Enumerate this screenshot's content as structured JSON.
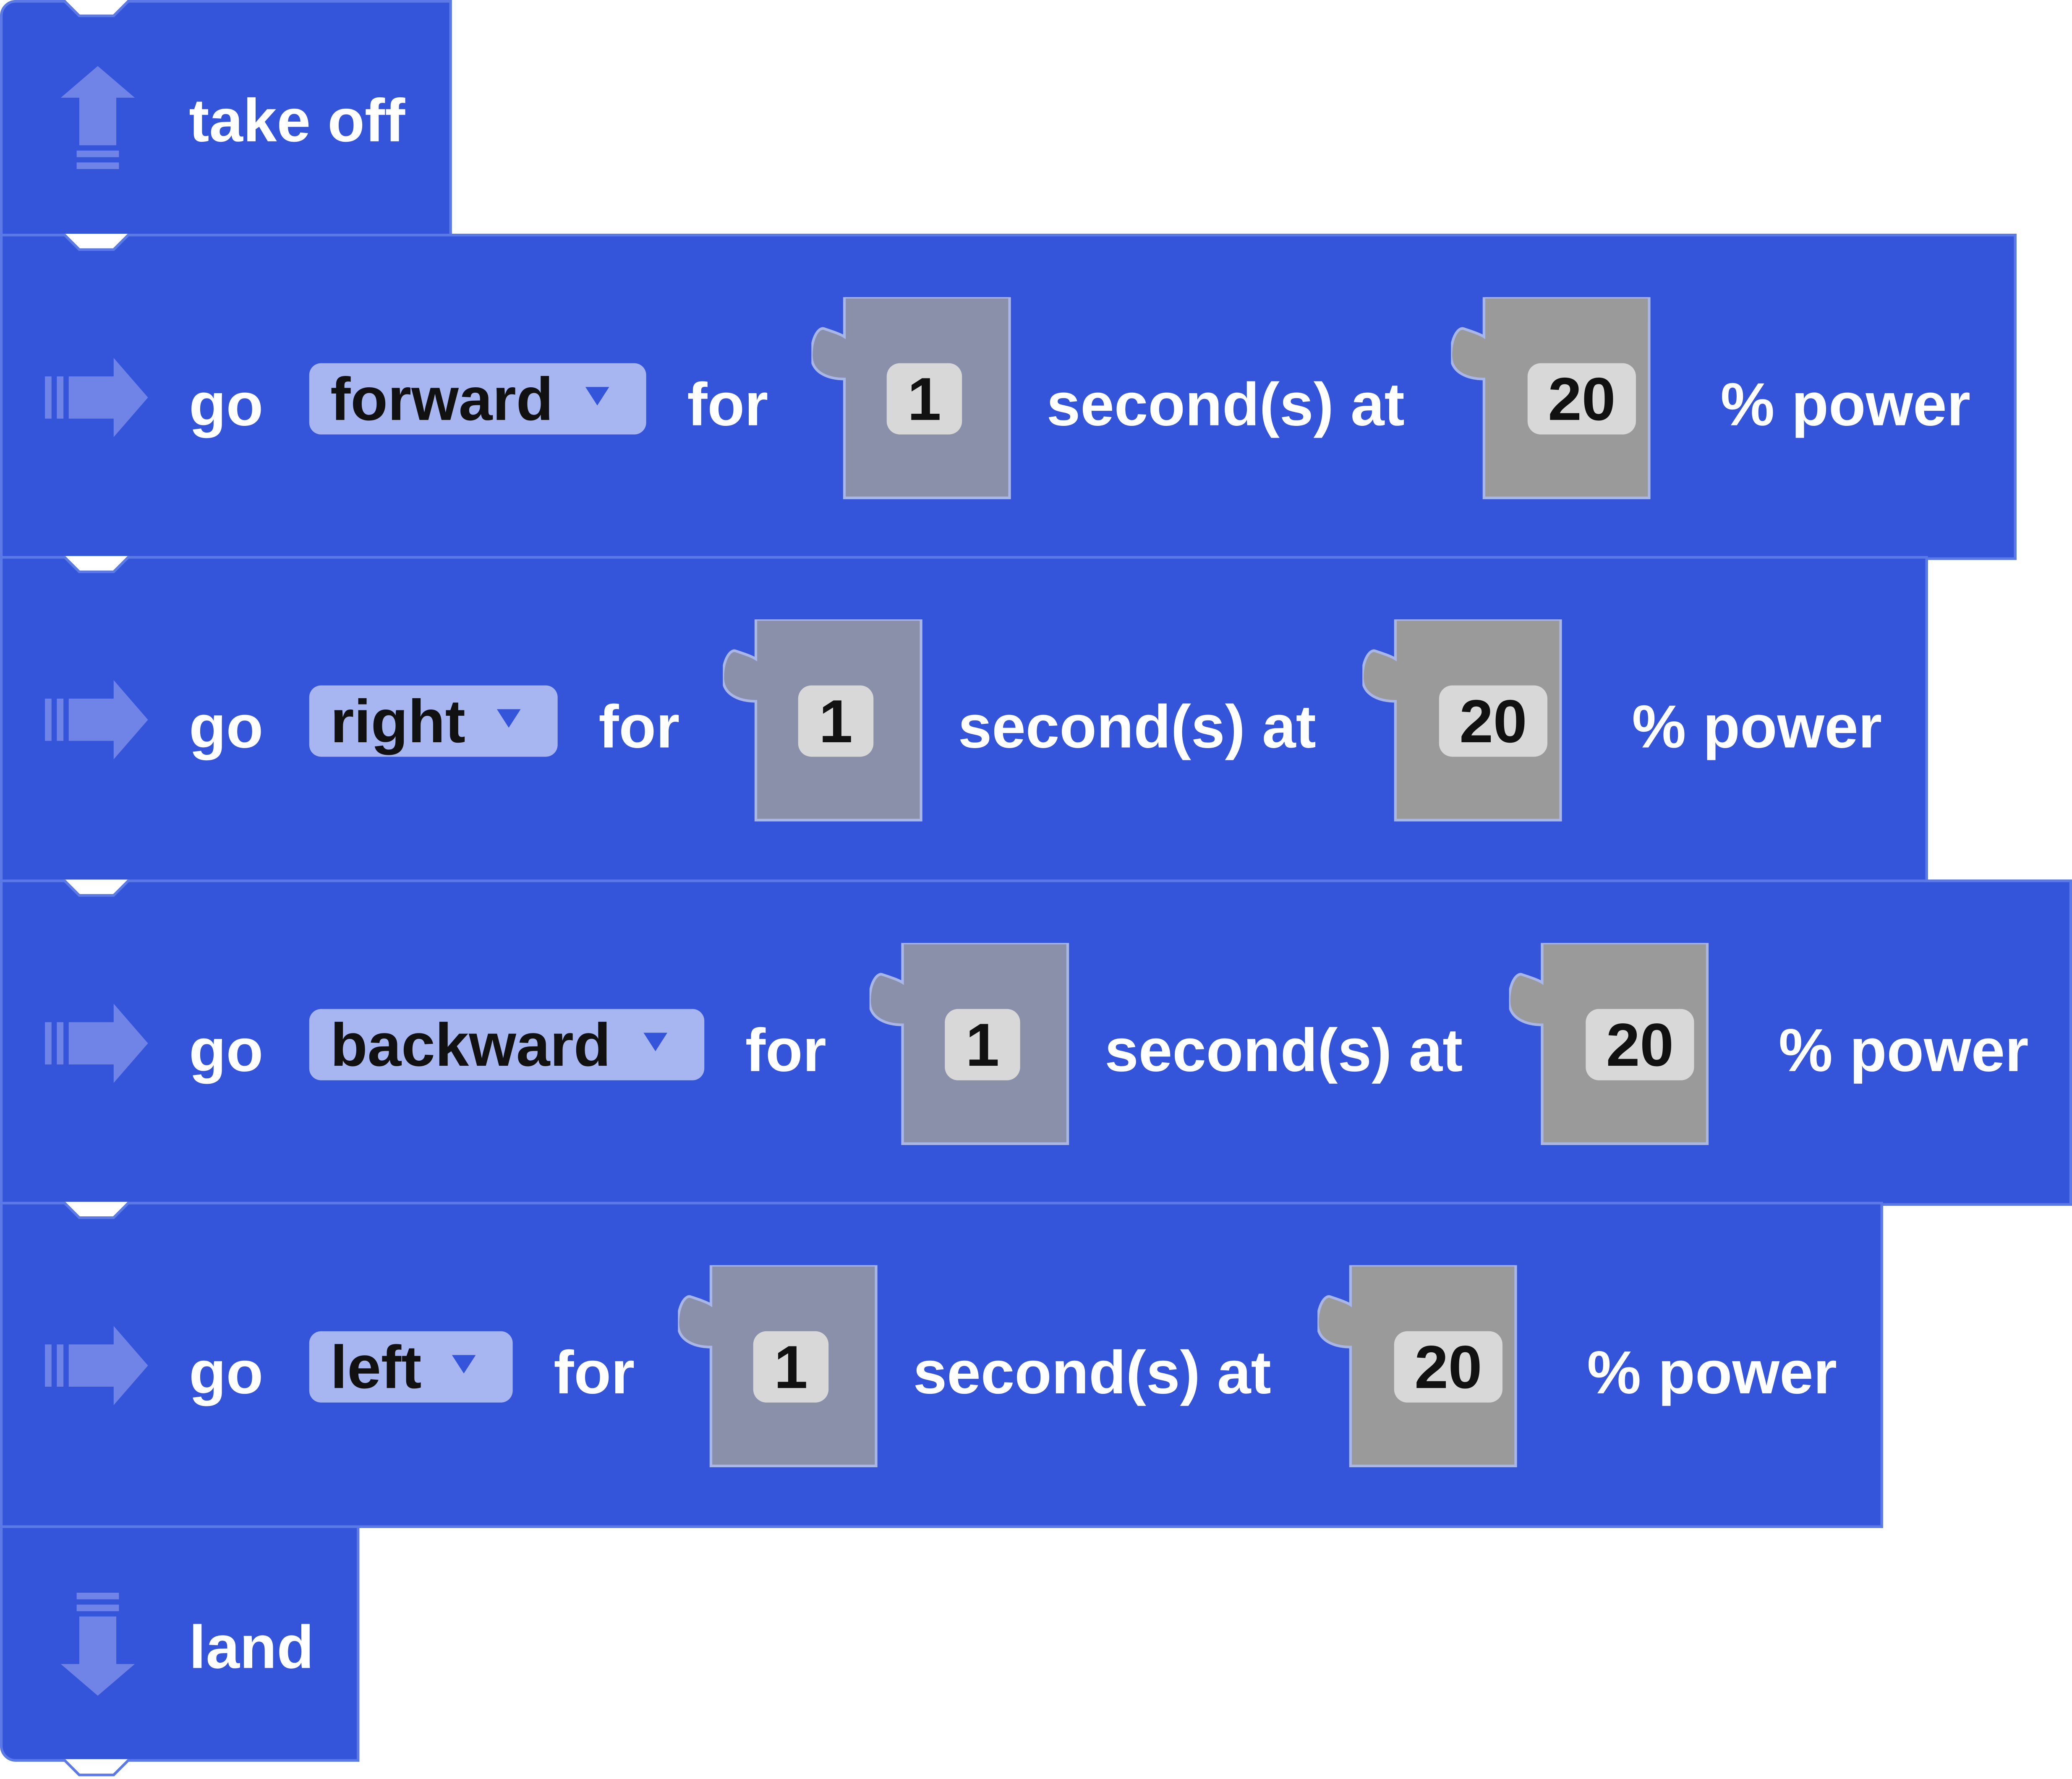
{
  "program": {
    "takeoff": {
      "label": "take off",
      "icon": "arrow-up-icon"
    },
    "land": {
      "label": "land",
      "icon": "arrow-down-icon"
    },
    "moves": [
      {
        "go_label": "go",
        "direction": "forward",
        "for_label": "for",
        "seconds": "1",
        "seconds_label": "second(s) at",
        "power": "20",
        "power_label": "% power"
      },
      {
        "go_label": "go",
        "direction": "right",
        "for_label": "for",
        "seconds": "1",
        "seconds_label": "second(s) at",
        "power": "20",
        "power_label": "% power"
      },
      {
        "go_label": "go",
        "direction": "backward",
        "for_label": "for",
        "seconds": "1",
        "seconds_label": "second(s) at",
        "power": "20",
        "power_label": "% power"
      },
      {
        "go_label": "go",
        "direction": "left",
        "for_label": "for",
        "seconds": "1",
        "seconds_label": "second(s) at",
        "power": "20",
        "power_label": "% power"
      }
    ]
  },
  "colors": {
    "block": "#3454d9",
    "block_border": "#5c7ae6",
    "dropdown": "#a7b5f0",
    "seconds_slot": "#8a90a9",
    "power_slot": "#9a9a9a",
    "field": "#d8d8d8"
  }
}
